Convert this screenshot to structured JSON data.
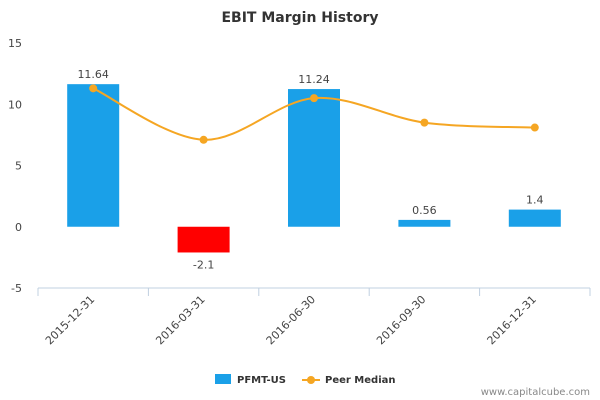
{
  "chart_data": {
    "type": "bar",
    "title": "EBIT Margin History",
    "categories": [
      "2015-12-31",
      "2016-03-31",
      "2016-06-30",
      "2016-09-30",
      "2016-12-31"
    ],
    "series": [
      {
        "name": "PFMT-US",
        "kind": "bar",
        "values": [
          11.64,
          -2.1,
          11.24,
          0.56,
          1.4
        ],
        "labels": [
          "11.64",
          "-2.1",
          "11.24",
          "0.56",
          "1.4"
        ],
        "color": "#1aa0e8",
        "negative_color": "#ff0000"
      },
      {
        "name": "Peer Median",
        "kind": "line",
        "values": [
          11.3,
          7.1,
          10.5,
          8.5,
          8.1
        ],
        "color": "#f5a623"
      }
    ],
    "ylim": [
      -5,
      15
    ],
    "yticks": [
      -5,
      0,
      5,
      10,
      15
    ],
    "xlabel": "",
    "ylabel": "",
    "grid": false,
    "legend_position": "bottom-center"
  },
  "watermark": "www.capitalcube.com"
}
